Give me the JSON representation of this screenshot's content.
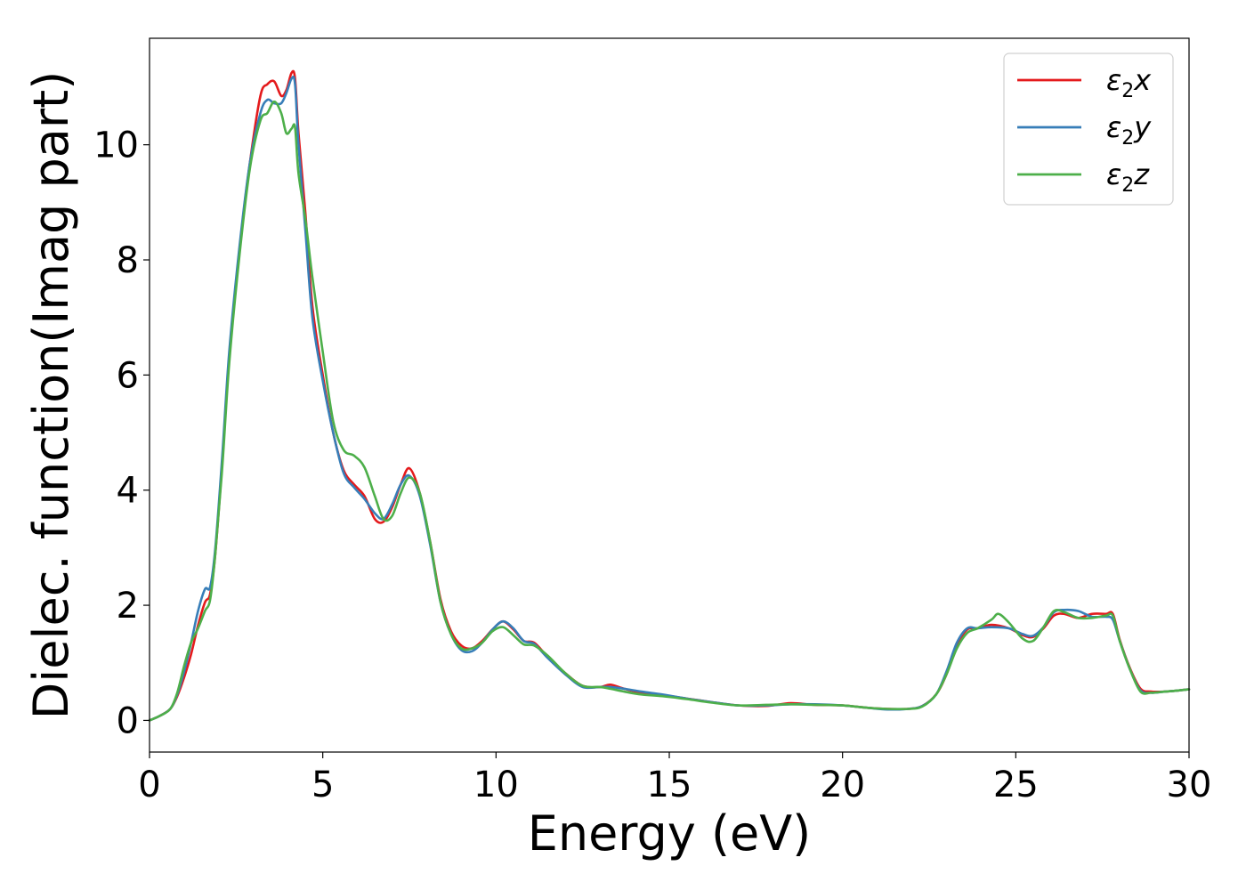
{
  "chart_data": {
    "type": "line",
    "xlabel": "Energy (eV)",
    "ylabel": "Dielec. function(Imag part)",
    "xlim": [
      0,
      30
    ],
    "ylim": [
      -0.55,
      11.85
    ],
    "xticks": [
      0,
      5,
      10,
      15,
      20,
      25,
      30
    ],
    "yticks": [
      0,
      2,
      4,
      6,
      8,
      10
    ],
    "grid": false,
    "legend_position": "top-right",
    "series": [
      {
        "name": "ε₂x",
        "legend": {
          "main": "ε",
          "sub": "2",
          "suffix": "x"
        },
        "color": "#e41a1c",
        "x": [
          0,
          0.3,
          0.6,
          0.8,
          1.0,
          1.2,
          1.4,
          1.6,
          1.75,
          1.9,
          2.1,
          2.3,
          2.6,
          2.9,
          3.2,
          3.4,
          3.6,
          3.8,
          3.95,
          4.1,
          4.2,
          4.3,
          4.5,
          4.7,
          5.0,
          5.3,
          5.6,
          5.9,
          6.2,
          6.5,
          6.75,
          7.0,
          7.25,
          7.5,
          7.8,
          8.1,
          8.4,
          8.7,
          9.0,
          9.3,
          9.6,
          9.9,
          10.2,
          10.5,
          10.8,
          11.1,
          11.5,
          12.0,
          12.5,
          13.0,
          13.3,
          13.7,
          14.2,
          14.8,
          15.5,
          16.2,
          17.0,
          17.8,
          18.5,
          19.2,
          20.0,
          20.7,
          21.3,
          21.9,
          22.3,
          22.7,
          23.0,
          23.3,
          23.6,
          23.9,
          24.3,
          24.8,
          25.2,
          25.5,
          25.8,
          26.1,
          26.4,
          26.8,
          27.2,
          27.6,
          27.8,
          28.0,
          28.3,
          28.6,
          28.9,
          29.3,
          29.7,
          30.0
        ],
        "y": [
          0.0,
          0.08,
          0.2,
          0.42,
          0.75,
          1.15,
          1.65,
          2.05,
          2.2,
          2.9,
          4.5,
          6.3,
          8.2,
          9.7,
          10.85,
          11.05,
          11.1,
          10.85,
          10.95,
          11.25,
          11.15,
          10.2,
          8.8,
          7.2,
          6.0,
          5.0,
          4.35,
          4.1,
          3.9,
          3.5,
          3.45,
          3.7,
          4.1,
          4.38,
          3.95,
          3.1,
          2.1,
          1.55,
          1.3,
          1.25,
          1.38,
          1.58,
          1.72,
          1.58,
          1.38,
          1.35,
          1.1,
          0.82,
          0.6,
          0.58,
          0.62,
          0.55,
          0.48,
          0.44,
          0.38,
          0.32,
          0.26,
          0.25,
          0.3,
          0.27,
          0.26,
          0.22,
          0.2,
          0.2,
          0.25,
          0.45,
          0.8,
          1.3,
          1.58,
          1.6,
          1.66,
          1.6,
          1.48,
          1.45,
          1.6,
          1.82,
          1.85,
          1.78,
          1.85,
          1.85,
          1.85,
          1.4,
          0.9,
          0.55,
          0.5,
          0.5,
          0.52,
          0.54
        ]
      },
      {
        "name": "ε₂y",
        "legend": {
          "main": "ε",
          "sub": "2",
          "suffix": "y"
        },
        "color": "#377eb8",
        "x": [
          0,
          0.3,
          0.6,
          0.8,
          1.0,
          1.2,
          1.4,
          1.6,
          1.75,
          1.9,
          2.1,
          2.3,
          2.6,
          2.9,
          3.2,
          3.4,
          3.6,
          3.8,
          3.95,
          4.1,
          4.2,
          4.3,
          4.5,
          4.7,
          5.0,
          5.3,
          5.6,
          5.9,
          6.2,
          6.5,
          6.75,
          7.0,
          7.25,
          7.5,
          7.8,
          8.1,
          8.4,
          8.7,
          9.0,
          9.3,
          9.6,
          9.9,
          10.2,
          10.5,
          10.8,
          11.1,
          11.5,
          12.0,
          12.5,
          13.0,
          13.3,
          13.7,
          14.2,
          14.8,
          15.5,
          16.2,
          17.0,
          17.8,
          18.5,
          19.2,
          20.0,
          20.7,
          21.3,
          21.9,
          22.3,
          22.7,
          23.0,
          23.3,
          23.6,
          23.9,
          24.3,
          24.8,
          25.2,
          25.5,
          25.8,
          26.1,
          26.4,
          26.8,
          27.2,
          27.6,
          27.8,
          28.0,
          28.3,
          28.6,
          28.9,
          29.3,
          29.7,
          30.0
        ],
        "y": [
          0.0,
          0.08,
          0.2,
          0.45,
          0.85,
          1.35,
          1.9,
          2.28,
          2.32,
          3.0,
          4.6,
          6.4,
          8.25,
          9.7,
          10.55,
          10.78,
          10.72,
          10.72,
          10.9,
          11.15,
          11.05,
          10.0,
          8.5,
          7.0,
          5.9,
          5.0,
          4.3,
          4.05,
          3.85,
          3.6,
          3.5,
          3.75,
          4.1,
          4.25,
          3.9,
          3.05,
          2.05,
          1.5,
          1.22,
          1.2,
          1.35,
          1.58,
          1.72,
          1.6,
          1.38,
          1.33,
          1.08,
          0.8,
          0.58,
          0.58,
          0.58,
          0.55,
          0.5,
          0.45,
          0.38,
          0.32,
          0.26,
          0.26,
          0.28,
          0.28,
          0.26,
          0.22,
          0.19,
          0.2,
          0.25,
          0.45,
          0.85,
          1.35,
          1.6,
          1.6,
          1.62,
          1.6,
          1.5,
          1.47,
          1.62,
          1.88,
          1.92,
          1.9,
          1.8,
          1.8,
          1.75,
          1.38,
          0.88,
          0.52,
          0.48,
          0.5,
          0.52,
          0.54
        ]
      },
      {
        "name": "ε₂z",
        "legend": {
          "main": "ε",
          "sub": "2",
          "suffix": "z"
        },
        "color": "#4daf4a",
        "x": [
          0,
          0.3,
          0.6,
          0.8,
          1.0,
          1.2,
          1.4,
          1.6,
          1.75,
          1.9,
          2.1,
          2.3,
          2.6,
          2.9,
          3.2,
          3.4,
          3.6,
          3.8,
          3.95,
          4.1,
          4.2,
          4.3,
          4.5,
          4.7,
          5.0,
          5.3,
          5.6,
          5.9,
          6.2,
          6.5,
          6.75,
          7.0,
          7.25,
          7.5,
          7.8,
          8.1,
          8.4,
          8.7,
          9.0,
          9.3,
          9.6,
          9.9,
          10.2,
          10.5,
          10.8,
          11.1,
          11.5,
          12.0,
          12.5,
          13.0,
          13.3,
          13.7,
          14.2,
          14.8,
          15.5,
          16.2,
          17.0,
          17.8,
          18.5,
          19.2,
          20.0,
          20.7,
          21.3,
          21.9,
          22.3,
          22.7,
          23.0,
          23.3,
          23.6,
          23.9,
          24.3,
          24.5,
          24.8,
          25.2,
          25.5,
          25.8,
          26.1,
          26.4,
          26.8,
          27.2,
          27.6,
          27.8,
          28.0,
          28.3,
          28.6,
          28.9,
          29.3,
          29.7,
          30.0
        ],
        "y": [
          0.0,
          0.08,
          0.2,
          0.48,
          0.95,
          1.35,
          1.6,
          1.9,
          2.1,
          2.9,
          4.4,
          6.2,
          8.1,
          9.6,
          10.42,
          10.55,
          10.75,
          10.55,
          10.2,
          10.28,
          10.3,
          9.5,
          8.7,
          7.7,
          6.4,
          5.2,
          4.7,
          4.6,
          4.4,
          3.9,
          3.5,
          3.55,
          3.95,
          4.22,
          3.95,
          3.1,
          2.05,
          1.5,
          1.25,
          1.25,
          1.35,
          1.55,
          1.62,
          1.48,
          1.32,
          1.3,
          1.12,
          0.82,
          0.6,
          0.58,
          0.55,
          0.5,
          0.45,
          0.42,
          0.37,
          0.31,
          0.26,
          0.27,
          0.28,
          0.27,
          0.26,
          0.22,
          0.2,
          0.2,
          0.24,
          0.45,
          0.8,
          1.25,
          1.52,
          1.6,
          1.75,
          1.85,
          1.7,
          1.42,
          1.38,
          1.62,
          1.9,
          1.88,
          1.78,
          1.78,
          1.82,
          1.82,
          1.38,
          0.88,
          0.5,
          0.48,
          0.5,
          0.52,
          0.54
        ]
      }
    ]
  }
}
